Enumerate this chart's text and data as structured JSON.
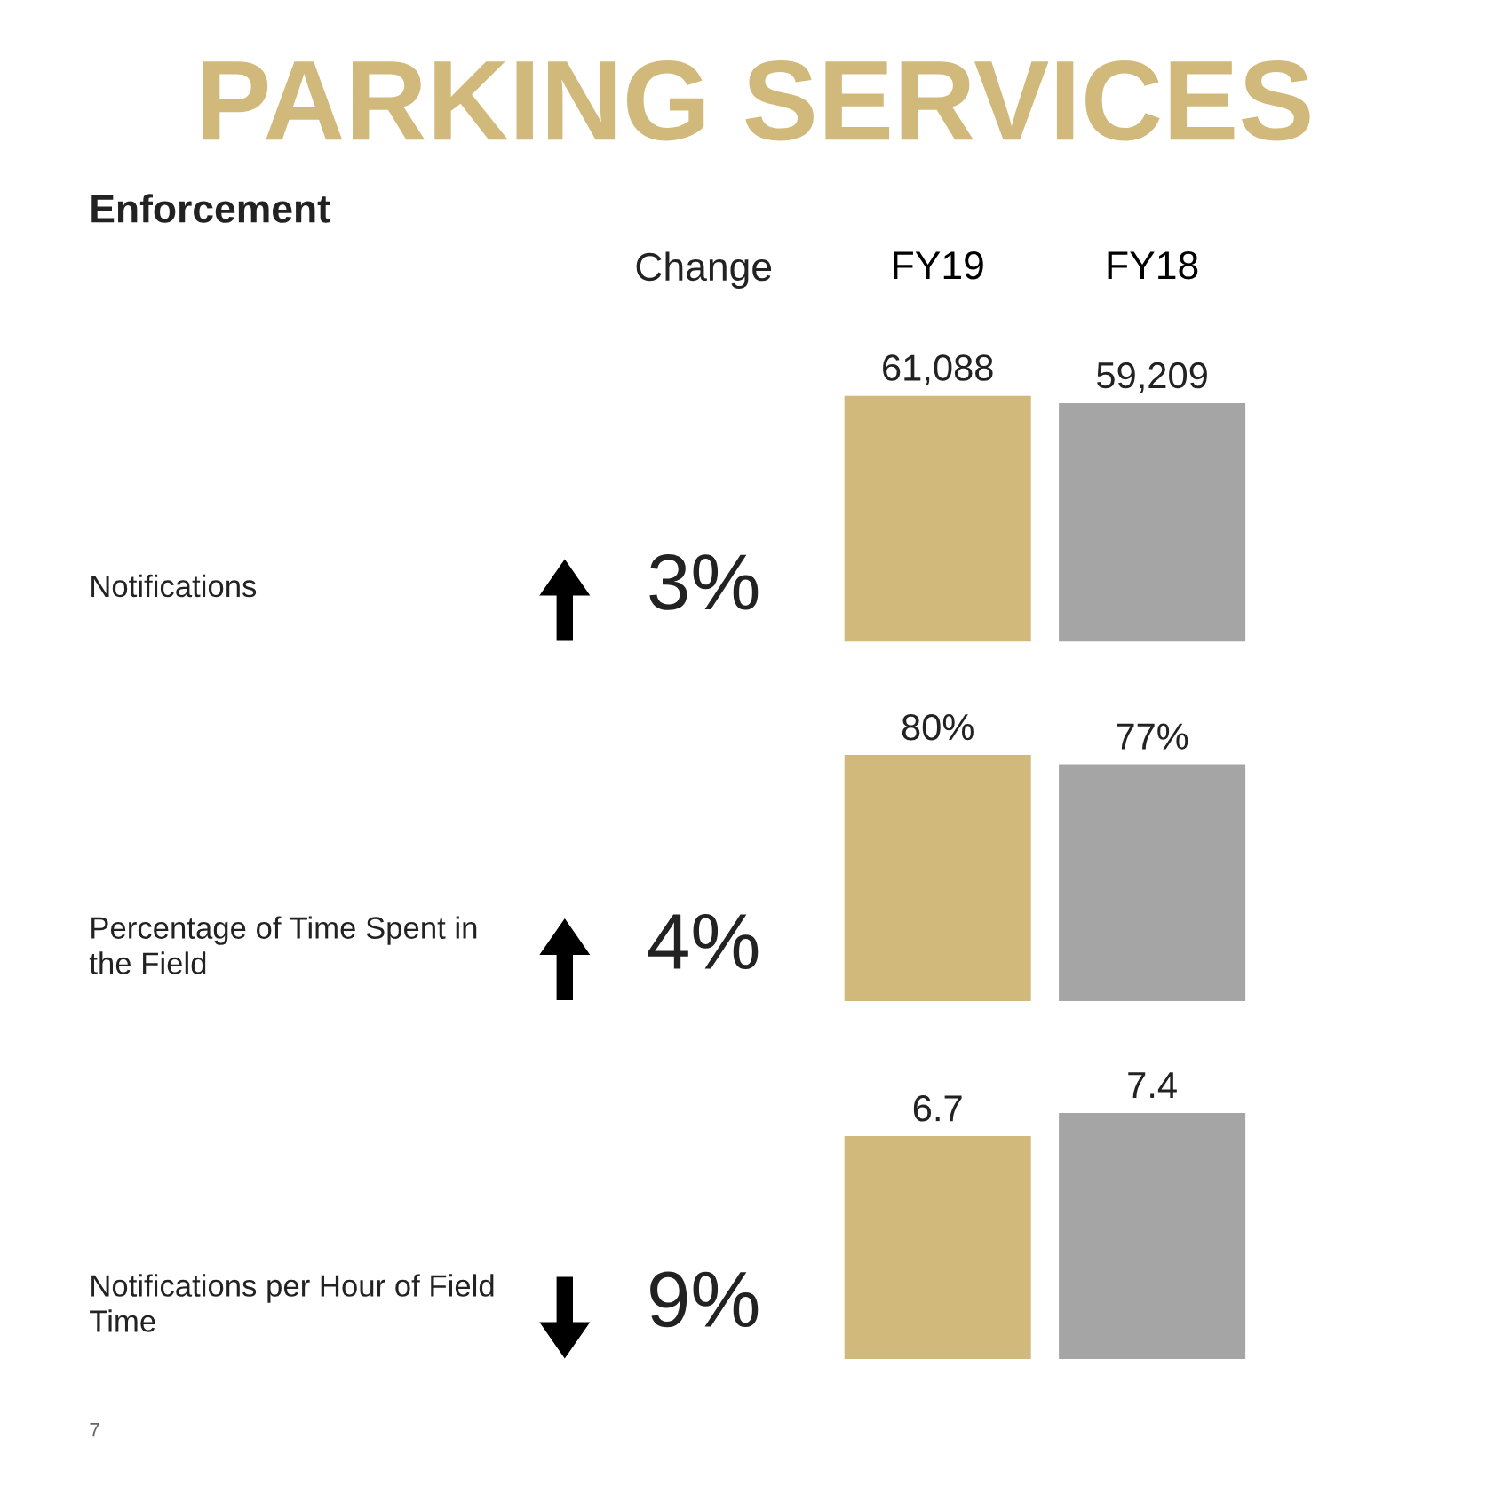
{
  "chart_data": [
    {
      "type": "other",
      "title": "PARKING SERVICES",
      "subtitle": "Enforcement"
    },
    {
      "type": "bar",
      "ylabel": "Notifications",
      "categories": [
        "FY19",
        "FY18"
      ],
      "values": [
        61088,
        59209
      ],
      "colors": [
        "#d1b97c",
        "#a4a5a4"
      ],
      "value_labels": [
        "61,088",
        "59,209"
      ],
      "annotations": [
        "Change",
        "3%"
      ]
    },
    {
      "type": "bar",
      "ylabel": "Percentage of Time Spent in the Field",
      "categories": [
        null,
        null
      ],
      "values": [
        80,
        77
      ],
      "colors": [
        "#d1b97c",
        "#a4a5a4"
      ],
      "value_labels": [
        "80%",
        "77%"
      ],
      "annotations": [
        "4%"
      ]
    },
    {
      "type": "bar",
      "ylabel": "Notifications per Hour of Field Time",
      "categories": [
        null,
        null
      ],
      "values": [
        6.7,
        7.4
      ],
      "colors": [
        "#d1b97c",
        "#a4a5a4"
      ],
      "value_labels": [
        "6.7",
        "7.4"
      ],
      "annotations": [
        "9%",
        "7"
      ]
    }
  ]
}
